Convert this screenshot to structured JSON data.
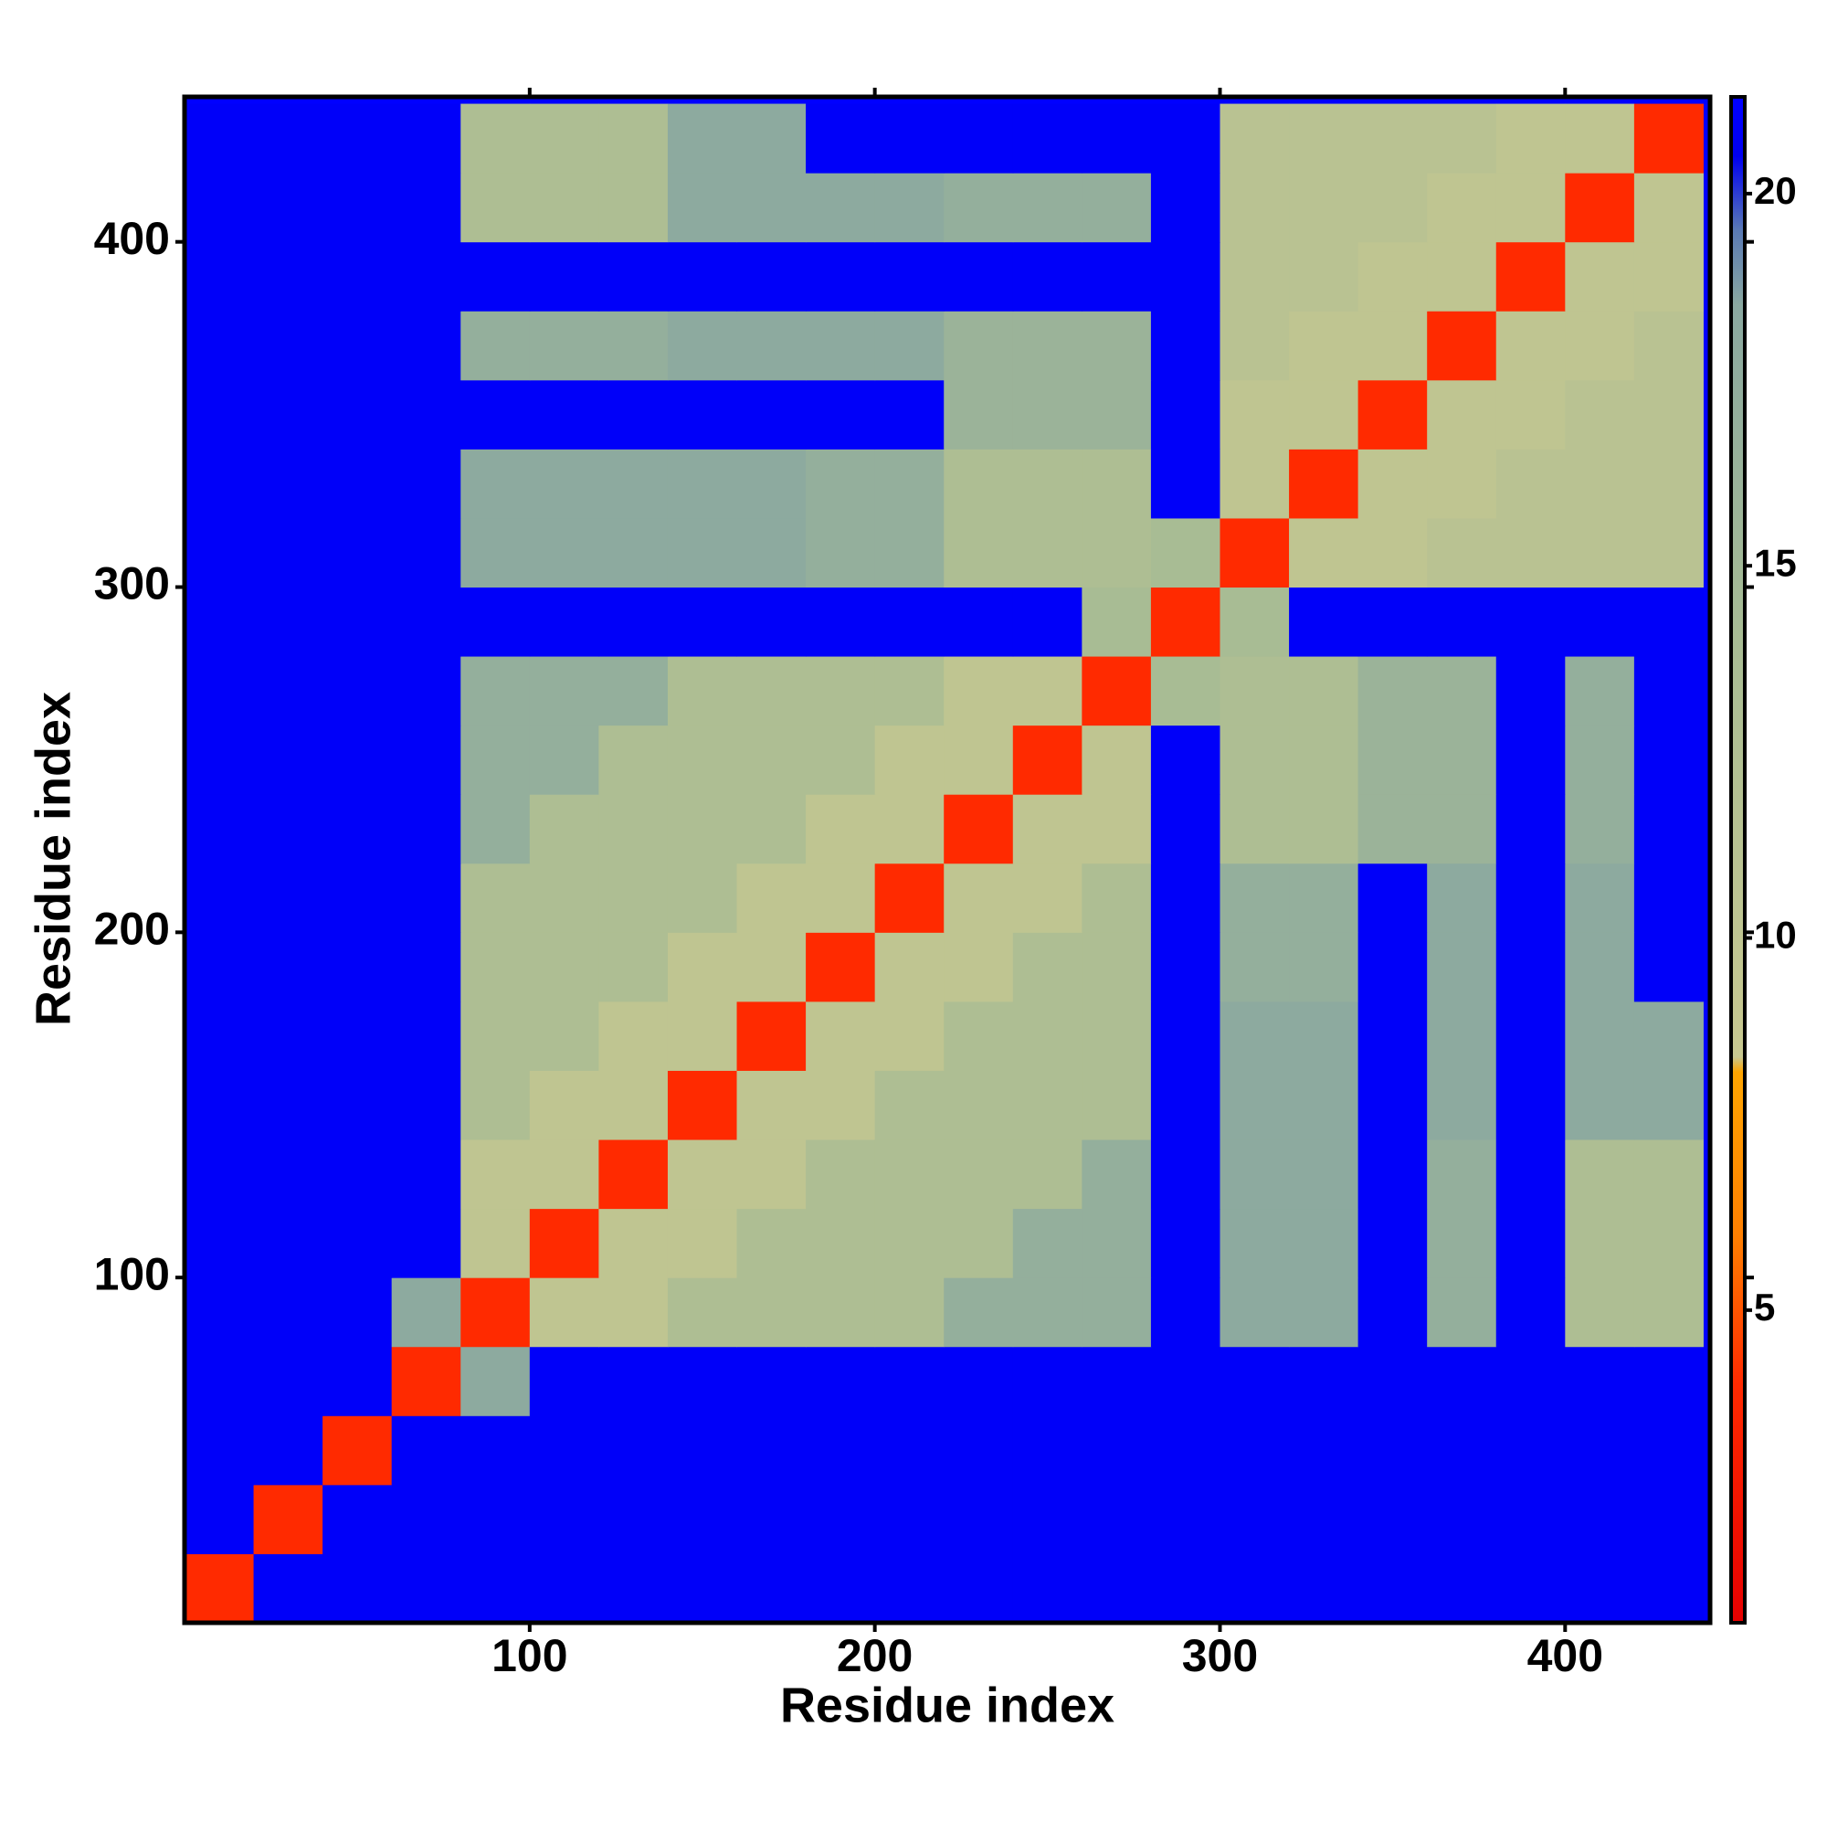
{
  "chart_data": {
    "type": "heatmap",
    "x_label": "Residue index",
    "y_label": "Residue index",
    "xlim": [
      0,
      442
    ],
    "ylim": [
      0,
      442
    ],
    "xticks": [
      100,
      200,
      300,
      400
    ],
    "yticks": [
      100,
      200,
      300,
      400
    ],
    "zlim": [
      0.8,
      21.3
    ],
    "zticks": [
      5,
      10,
      15,
      20
    ],
    "colorscale": [
      [
        0.8,
        "#e60000"
      ],
      [
        4,
        "#ff2a00"
      ],
      [
        6,
        "#ff7f00"
      ],
      [
        8.2,
        "#ffa500"
      ],
      [
        8.4,
        "#c8c890"
      ],
      [
        14,
        "#a8bc94"
      ],
      [
        18.5,
        "#8aa8a0"
      ],
      [
        19.5,
        "#5a7ab4"
      ],
      [
        20.5,
        "#0000f0"
      ],
      [
        21.3,
        "#0000ff"
      ]
    ],
    "xbins": [
      0,
      20,
      40,
      60,
      80,
      100,
      120,
      140,
      160,
      180,
      200,
      220,
      240,
      260,
      280,
      300,
      320,
      340,
      360,
      380,
      400,
      420,
      440
    ],
    "ybins": [
      0,
      20,
      40,
      60,
      80,
      100,
      120,
      140,
      160,
      180,
      200,
      220,
      240,
      260,
      280,
      300,
      320,
      340,
      360,
      380,
      400,
      420,
      440
    ],
    "z": [
      [
        4,
        21,
        21,
        21,
        21,
        21,
        21,
        21,
        21,
        21,
        21,
        21,
        21,
        21,
        21,
        21,
        21,
        21,
        21,
        21,
        21,
        21
      ],
      [
        21,
        4,
        21,
        21,
        21,
        21,
        21,
        21,
        21,
        21,
        21,
        21,
        21,
        21,
        21,
        21,
        21,
        21,
        21,
        21,
        21,
        21
      ],
      [
        21,
        21,
        4,
        21,
        21,
        21,
        21,
        21,
        21,
        21,
        21,
        21,
        21,
        21,
        21,
        21,
        21,
        21,
        21,
        21,
        21,
        21
      ],
      [
        21,
        21,
        21,
        4,
        18,
        21,
        21,
        21,
        21,
        21,
        21,
        21,
        21,
        21,
        21,
        21,
        21,
        21,
        21,
        21,
        21,
        21
      ],
      [
        21,
        21,
        21,
        18,
        4,
        10,
        10,
        13,
        13,
        13,
        13,
        17,
        17,
        17,
        21,
        18,
        18,
        21,
        17,
        21,
        13,
        13
      ],
      [
        21,
        21,
        21,
        21,
        10,
        4,
        10,
        10,
        13,
        13,
        13,
        13,
        17,
        17,
        21,
        18,
        18,
        21,
        17,
        21,
        13,
        13
      ],
      [
        21,
        21,
        21,
        21,
        10,
        10,
        4,
        10,
        10,
        13,
        13,
        13,
        13,
        17,
        21,
        18,
        18,
        21,
        17,
        21,
        13,
        13
      ],
      [
        21,
        21,
        21,
        21,
        13,
        10,
        10,
        4,
        10,
        10,
        13,
        13,
        13,
        13,
        21,
        18,
        18,
        21,
        18,
        21,
        18,
        18
      ],
      [
        21,
        21,
        21,
        21,
        13,
        13,
        10,
        10,
        4,
        10,
        10,
        13,
        13,
        13,
        21,
        18,
        18,
        21,
        18,
        21,
        18,
        18
      ],
      [
        21,
        21,
        21,
        21,
        13,
        13,
        13,
        10,
        10,
        4,
        10,
        10,
        13,
        13,
        21,
        17,
        17,
        21,
        18,
        21,
        18,
        21
      ],
      [
        21,
        21,
        21,
        21,
        13,
        13,
        13,
        13,
        10,
        10,
        4,
        10,
        10,
        13,
        21,
        17,
        17,
        21,
        18,
        21,
        18,
        21
      ],
      [
        21,
        21,
        21,
        21,
        17,
        13,
        13,
        13,
        13,
        10,
        10,
        4,
        10,
        10,
        21,
        13,
        13,
        16,
        16,
        21,
        17,
        21
      ],
      [
        21,
        21,
        21,
        21,
        17,
        17,
        13,
        13,
        13,
        13,
        10,
        10,
        4,
        10,
        21,
        13,
        13,
        16,
        16,
        21,
        17,
        21
      ],
      [
        21,
        21,
        21,
        21,
        17,
        17,
        17,
        13,
        13,
        13,
        13,
        10,
        10,
        4,
        14,
        13,
        13,
        16,
        16,
        21,
        17,
        21
      ],
      [
        21,
        21,
        21,
        21,
        21,
        21,
        21,
        21,
        21,
        21,
        21,
        21,
        21,
        14,
        4,
        14,
        21,
        21,
        21,
        21,
        21,
        21
      ],
      [
        21,
        21,
        21,
        21,
        18,
        18,
        18,
        18,
        18,
        17,
        17,
        13,
        13,
        13,
        14,
        4,
        10,
        10,
        11,
        11,
        11,
        11
      ],
      [
        21,
        21,
        21,
        21,
        18,
        18,
        18,
        18,
        18,
        17,
        17,
        13,
        13,
        13,
        21,
        10,
        4,
        10,
        10,
        11,
        11,
        11
      ],
      [
        21,
        21,
        21,
        21,
        21,
        21,
        21,
        21,
        21,
        21,
        21,
        16,
        16,
        16,
        21,
        10,
        10,
        4,
        10,
        10,
        11,
        11
      ],
      [
        21,
        21,
        21,
        21,
        17,
        17,
        17,
        18,
        18,
        18,
        18,
        16,
        16,
        16,
        21,
        11,
        10,
        10,
        4,
        10,
        10,
        11
      ],
      [
        21,
        21,
        21,
        21,
        21,
        21,
        21,
        21,
        21,
        21,
        21,
        21,
        21,
        21,
        21,
        11,
        11,
        10,
        10,
        4,
        10,
        10
      ],
      [
        21,
        21,
        21,
        21,
        13,
        13,
        13,
        18,
        18,
        18,
        18,
        17,
        17,
        17,
        21,
        11,
        11,
        11,
        10,
        10,
        4,
        10
      ],
      [
        21,
        21,
        21,
        21,
        13,
        13,
        13,
        18,
        18,
        21,
        21,
        21,
        21,
        21,
        21,
        11,
        11,
        11,
        11,
        10,
        10,
        4
      ]
    ]
  }
}
